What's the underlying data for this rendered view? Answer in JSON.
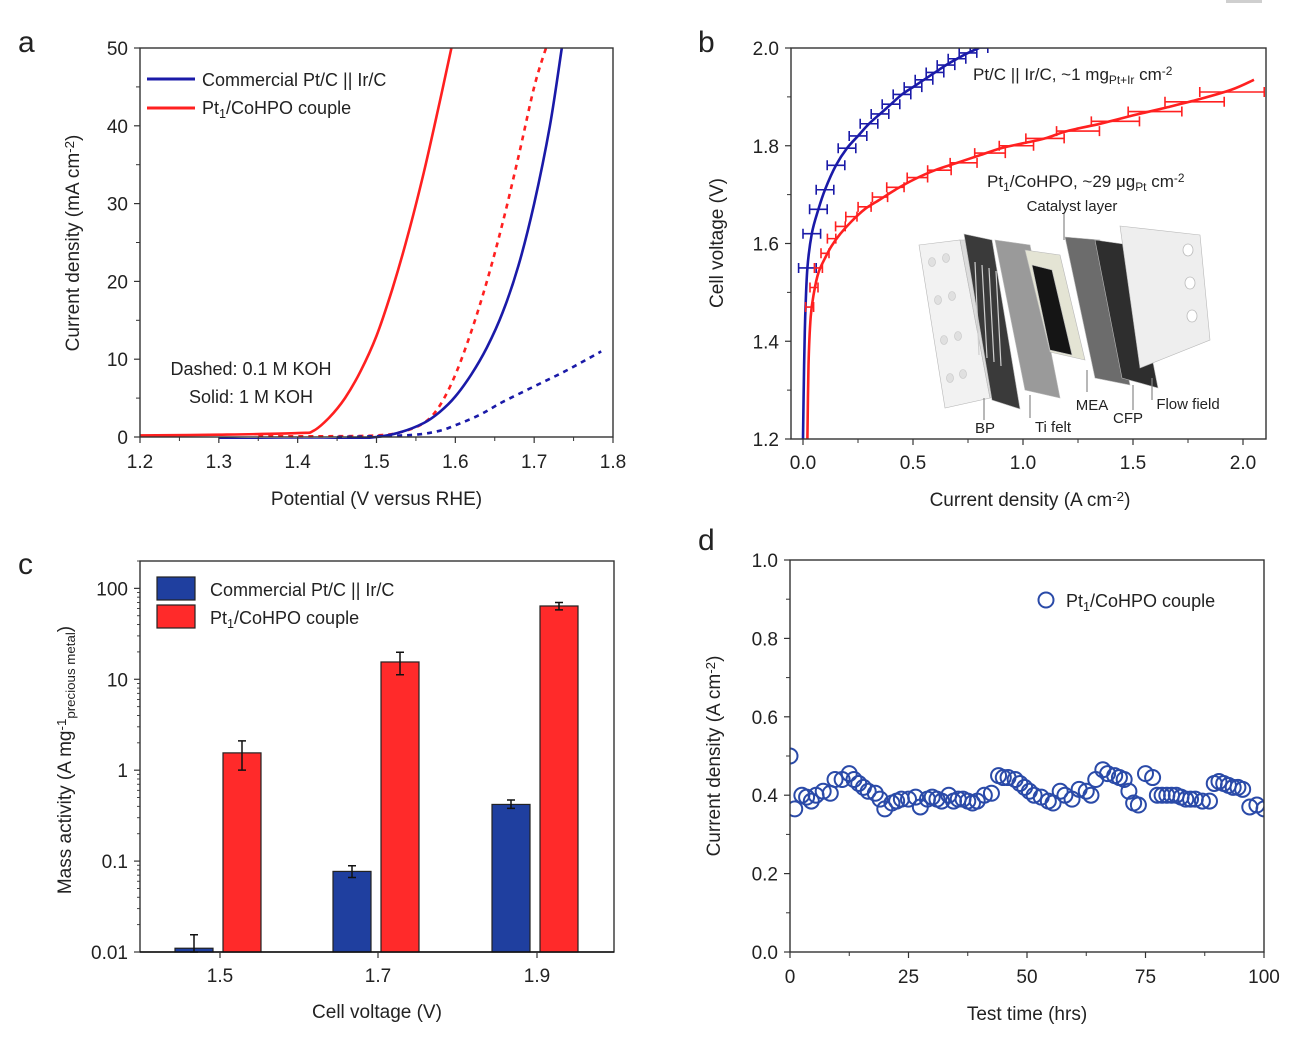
{
  "figure": {
    "panels": [
      "a",
      "b",
      "c",
      "d"
    ]
  },
  "colors": {
    "blue": "#1a1aa8",
    "red": "#ff2020",
    "bar_blue": "#1f3f9f",
    "bar_red": "#ff2a2a",
    "marker_blue": "#2a4aa8",
    "axis": "#333333"
  },
  "chart_data": [
    {
      "panel": "a",
      "type": "line",
      "title": "",
      "xlabel": "Potential (V versus RHE)",
      "ylabel": "Current density (mA cm",
      "ylabel_sup": "-2",
      "ylabel_end": ")",
      "xlim": [
        1.2,
        1.8
      ],
      "ylim": [
        0,
        50
      ],
      "xticks": [
        "1.2",
        "1.3",
        "1.4",
        "1.5",
        "1.6",
        "1.7",
        "1.8"
      ],
      "yticks": [
        "0",
        "10",
        "20",
        "30",
        "40",
        "50"
      ],
      "legend": {
        "position": "top-left",
        "entries": [
          {
            "label": "Commercial Pt/C || Ir/C",
            "color": "blue"
          },
          {
            "label_main": "Pt",
            "label_sub": "1",
            "label_rest": "/CoHPO couple",
            "color": "red"
          }
        ]
      },
      "annotations": [
        "Dashed: 0.1 M KOH",
        "Solid: 1 M KOH"
      ],
      "series": [
        {
          "name": "Pt1/CoHPO couple (1 M KOH)",
          "style": "solid",
          "color": "red",
          "x": [
            1.2,
            1.3,
            1.4,
            1.42,
            1.44,
            1.46,
            1.48,
            1.5,
            1.52,
            1.54,
            1.56,
            1.58,
            1.595
          ],
          "y": [
            0.2,
            0.3,
            0.5,
            0.8,
            2.5,
            5.0,
            8.5,
            13.0,
            19.0,
            26.0,
            34.0,
            43.0,
            50.0
          ]
        },
        {
          "name": "Pt1/CoHPO couple (0.1 M KOH)",
          "style": "dashed",
          "color": "red",
          "x": [
            1.35,
            1.45,
            1.5,
            1.53,
            1.56,
            1.58,
            1.6,
            1.62,
            1.64,
            1.66,
            1.68,
            1.7,
            1.715
          ],
          "y": [
            0.1,
            0.1,
            0.2,
            0.6,
            1.8,
            4.0,
            8.0,
            13.5,
            20.0,
            27.5,
            36.0,
            45.0,
            50.0
          ]
        },
        {
          "name": "Commercial Pt/C || Ir/C (1 M KOH)",
          "style": "solid",
          "color": "blue",
          "x": [
            1.3,
            1.35,
            1.45,
            1.5,
            1.53,
            1.56,
            1.58,
            1.6,
            1.62,
            1.64,
            1.66,
            1.68,
            1.7,
            1.72,
            1.735
          ],
          "y": [
            -0.2,
            -0.3,
            -0.3,
            0.0,
            0.6,
            1.8,
            3.2,
            5.2,
            8.0,
            11.5,
            16.0,
            22.0,
            30.0,
            40.0,
            50.0
          ]
        },
        {
          "name": "Commercial Pt/C || Ir/C (0.1 M KOH)",
          "style": "dashed",
          "color": "blue",
          "x": [
            1.45,
            1.5,
            1.55,
            1.58,
            1.6,
            1.63,
            1.66,
            1.7,
            1.74,
            1.785
          ],
          "y": [
            0.0,
            0.1,
            0.3,
            0.8,
            1.5,
            2.8,
            4.5,
            6.5,
            8.5,
            11.0
          ]
        }
      ]
    },
    {
      "panel": "b",
      "type": "line",
      "title": "",
      "xlabel": "Current density (A cm",
      "xlabel_sup": "-2",
      "xlabel_end": ")",
      "ylabel": "Cell voltage (V)",
      "xlim": [
        -0.05,
        2.12
      ],
      "ylim": [
        1.2,
        2.0
      ],
      "xticks": [
        "0.0",
        "0.5",
        "1.0",
        "1.5",
        "2.0"
      ],
      "xtick_values": [
        0,
        0.5,
        1.0,
        1.5,
        2.0
      ],
      "yticks": [
        "1.2",
        "1.4",
        "1.6",
        "1.8",
        "2.0"
      ],
      "ytick_values": [
        1.2,
        1.4,
        1.6,
        1.8,
        2.0
      ],
      "annotations": {
        "blue_label": {
          "main": "Pt/C || Ir/C, ~1 mg",
          "sub": "Pt+Ir",
          "rest": " cm",
          "sup": "-2"
        },
        "red_label": {
          "main": "Pt",
          "sub1": "1",
          "mid": "/CoHPO, ~29 μg",
          "sub2": "Pt",
          "rest": " cm",
          "sup": "-2"
        }
      },
      "inset": {
        "description": "electrolyzer stack exploded view",
        "labels": [
          "Catalyst layer",
          "BP",
          "Ti felt",
          "MEA",
          "CFP",
          "Flow field"
        ]
      },
      "series": [
        {
          "name": "Pt/C || Ir/C",
          "color": "blue",
          "x": [
            0.0,
            0.005,
            0.01,
            0.02,
            0.04,
            0.07,
            0.1,
            0.15,
            0.2,
            0.25,
            0.3,
            0.35,
            0.4,
            0.45,
            0.5,
            0.55,
            0.6,
            0.65,
            0.7,
            0.75,
            0.8
          ],
          "y": [
            1.2,
            1.35,
            1.45,
            1.55,
            1.62,
            1.67,
            1.71,
            1.76,
            1.795,
            1.82,
            1.845,
            1.865,
            1.885,
            1.905,
            1.92,
            1.935,
            1.95,
            1.965,
            1.978,
            1.99,
            2.0
          ],
          "error_x": 0.04
        },
        {
          "name": "Pt1/CoHPO",
          "color": "red",
          "x": [
            0.02,
            0.025,
            0.035,
            0.05,
            0.07,
            0.1,
            0.13,
            0.17,
            0.22,
            0.28,
            0.35,
            0.42,
            0.5,
            0.6,
            0.7,
            0.8,
            0.9,
            1.0,
            1.1,
            1.2,
            1.35,
            1.5,
            1.65,
            1.8,
            1.95,
            2.05
          ],
          "y": [
            1.2,
            1.35,
            1.45,
            1.5,
            1.54,
            1.57,
            1.595,
            1.62,
            1.645,
            1.67,
            1.69,
            1.71,
            1.73,
            1.75,
            1.765,
            1.78,
            1.795,
            1.805,
            1.815,
            1.83,
            1.845,
            1.862,
            1.878,
            1.895,
            1.915,
            1.935
          ],
          "error_points_x": [
            0.03,
            0.05,
            0.07,
            0.1,
            0.13,
            0.17,
            0.22,
            0.28,
            0.35,
            0.42,
            0.52,
            0.62,
            0.73,
            0.85,
            0.97,
            1.1,
            1.25,
            1.42,
            1.6,
            1.78,
            1.95
          ],
          "error_points_y": [
            1.47,
            1.51,
            1.55,
            1.58,
            1.61,
            1.635,
            1.655,
            1.675,
            1.695,
            1.715,
            1.735,
            1.75,
            1.765,
            1.785,
            1.8,
            1.815,
            1.83,
            1.85,
            1.87,
            1.89,
            1.91
          ],
          "error_x_frac": 0.07
        }
      ]
    },
    {
      "panel": "c",
      "type": "bar",
      "title": "",
      "xlabel": "Cell voltage (V)",
      "ylabel": "Mass activity (A mg",
      "ylabel_sup": "-1",
      "ylabel_sub": "precious metal",
      "ylabel_end": ")",
      "yscale": "log",
      "ylim": [
        0.01,
        200
      ],
      "yticks": [
        "0.01",
        "0.1",
        "1",
        "10",
        "100"
      ],
      "ytick_values": [
        0.01,
        0.1,
        1,
        10,
        100
      ],
      "categories": [
        "1.5",
        "1.7",
        "1.9"
      ],
      "legend": {
        "position": "top-left",
        "entries": [
          {
            "label": "Commercial Pt/C || Ir/C",
            "color": "bar_blue"
          },
          {
            "label_main": "Pt",
            "label_sub": "1",
            "label_rest": "/CoHPO couple",
            "color": "bar_red"
          }
        ]
      },
      "series": [
        {
          "name": "Commercial Pt/C || Ir/C",
          "color": "bar_blue",
          "values": [
            0.011,
            0.077,
            0.42
          ],
          "err_low": [
            0.01,
            0.066,
            0.38
          ],
          "err_high": [
            0.0155,
            0.089,
            0.47
          ]
        },
        {
          "name": "Pt1/CoHPO couple",
          "color": "bar_red",
          "values": [
            1.55,
            15.5,
            64
          ],
          "err_low": [
            1.0,
            11.2,
            58
          ],
          "err_high": [
            2.1,
            19.8,
            70
          ]
        }
      ]
    },
    {
      "panel": "d",
      "type": "scatter",
      "title": "",
      "xlabel": "Test time (hrs)",
      "ylabel": "Current density (A cm",
      "ylabel_sup": "-2",
      "ylabel_end": ")",
      "xlim": [
        0,
        100
      ],
      "ylim": [
        0.0,
        1.0
      ],
      "xticks": [
        "0",
        "25",
        "50",
        "75",
        "100"
      ],
      "xtick_values": [
        0,
        25,
        50,
        75,
        100
      ],
      "yticks": [
        "0.0",
        "0.2",
        "0.4",
        "0.6",
        "0.8",
        "1.0"
      ],
      "ytick_values": [
        0,
        0.2,
        0.4,
        0.6,
        0.8,
        1.0
      ],
      "legend": {
        "position": "top-right",
        "entries": [
          {
            "label_main": "Pt",
            "label_sub": "1",
            "label_rest": "/CoHPO couple",
            "marker": "open-circle"
          }
        ]
      },
      "series": [
        {
          "name": "Pt1/CoHPO couple",
          "x": [
            0,
            1,
            2.5,
            3.5,
            4.5,
            5.5,
            7,
            8.5,
            9.5,
            11,
            12.5,
            13.5,
            14.5,
            15.5,
            16.5,
            18,
            19,
            20,
            21.5,
            22.5,
            23.5,
            25,
            26.5,
            27.5,
            29,
            30,
            31,
            32,
            33.5,
            34.5,
            35.5,
            36.5,
            37.5,
            38.5,
            39.5,
            41,
            42.5,
            44,
            45,
            46,
            47.5,
            48.5,
            49.5,
            50.5,
            51.5,
            53,
            54.5,
            55.5,
            57,
            58,
            59.5,
            61,
            62.5,
            63.5,
            64.5,
            66,
            67,
            68.5,
            69.5,
            70.5,
            71.5,
            72.5,
            73.5,
            75,
            76.5,
            77.5,
            78.5,
            79.5,
            80.5,
            81.5,
            82.5,
            83.5,
            84.5,
            85.5,
            87,
            88.5,
            89.5,
            90.5,
            91.5,
            92.5,
            93.5,
            94.5,
            95.5,
            97,
            98.5,
            100
          ],
          "y": [
            0.5,
            0.365,
            0.4,
            0.395,
            0.385,
            0.4,
            0.41,
            0.405,
            0.44,
            0.44,
            0.455,
            0.44,
            0.43,
            0.42,
            0.41,
            0.405,
            0.39,
            0.365,
            0.38,
            0.385,
            0.39,
            0.39,
            0.395,
            0.37,
            0.39,
            0.395,
            0.39,
            0.385,
            0.4,
            0.385,
            0.39,
            0.39,
            0.385,
            0.38,
            0.385,
            0.4,
            0.405,
            0.45,
            0.445,
            0.445,
            0.44,
            0.43,
            0.42,
            0.41,
            0.4,
            0.395,
            0.385,
            0.38,
            0.41,
            0.4,
            0.39,
            0.415,
            0.41,
            0.4,
            0.44,
            0.465,
            0.455,
            0.45,
            0.445,
            0.44,
            0.41,
            0.38,
            0.375,
            0.455,
            0.445,
            0.4,
            0.4,
            0.4,
            0.4,
            0.4,
            0.395,
            0.39,
            0.39,
            0.39,
            0.385,
            0.385,
            0.43,
            0.435,
            0.43,
            0.425,
            0.42,
            0.42,
            0.415,
            0.37,
            0.375,
            0.365
          ]
        }
      ]
    }
  ]
}
